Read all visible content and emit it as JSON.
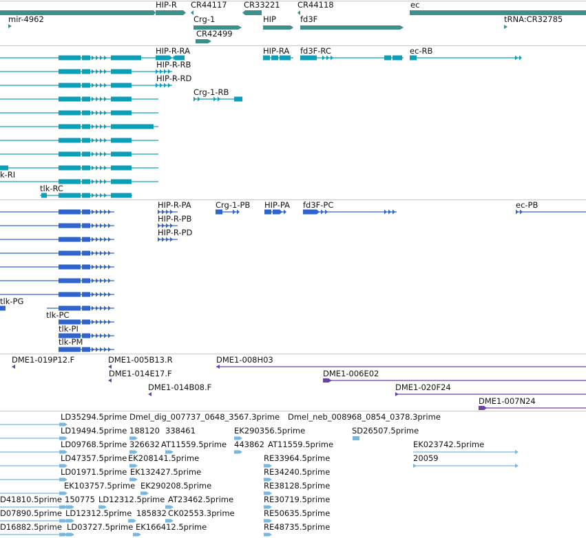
{
  "colors": {
    "gene": "#3d8f8c",
    "mrna": "#0e9fb8",
    "cds": "#2f64cf",
    "bac": "#6a3fa8",
    "est": "#78b8dc"
  },
  "gene_track": {
    "labels": [
      "HIP-R",
      "CR44117",
      "CR33221",
      "CR44118",
      "ec",
      "mir-4962",
      "Crg-1",
      "HIP",
      "fd3F",
      "tRNA:CR32785",
      "CR42499"
    ]
  },
  "mrna_track": {
    "labels": [
      "HIP-R-RA",
      "HIP-RA",
      "fd3F-RC",
      "ec-RB",
      "HIP-R-RB",
      "HIP-R-RD",
      "Crg-1-RB",
      "k-RI",
      "tlk-RC"
    ]
  },
  "cds_track": {
    "labels": [
      "HIP-R-PA",
      "Crg-1-PB",
      "HIP-PA",
      "fd3F-PC",
      "ec-PB",
      "HIP-R-PB",
      "HIP-R-PD",
      "tlk-PG",
      "tlk-PC",
      "tlk-PI",
      "tlk-PM"
    ]
  },
  "bac_track": {
    "labels": [
      "DME1-019P12.F",
      "DME1-005B13.R",
      "DME1-008H03",
      "DME1-014E17.F",
      "DME1-006E02",
      "DME1-014B08.F",
      "DME1-020F24",
      "DME1-007N24"
    ]
  },
  "est_track": {
    "labels": [
      "LD35294.5prime",
      "Dmel_dig_007737_0648_3567.3prime",
      "Dmel_neb_008968_0854_0378.3prime",
      "LD19494.5prime",
      "188120",
      "338461",
      "EK290356.5prime",
      "SD26507.5prime",
      "LD09768.5prime",
      "326632",
      "AT11559.5prime",
      "443862",
      "AT11559.5prime",
      "EK023742.5prime",
      "LD47357.5prime",
      "EK208141.5prime",
      "RE33964.5prime",
      "20059",
      "LD01971.5prime",
      "EK132427.5prime",
      "RE34240.5prime",
      "EK103757.5prime",
      "EK290208.5prime",
      "RE38128.5prime",
      "D41810.5prime",
      "150775",
      "LD12312.5prime",
      "AT23462.5prime",
      "RE30719.5prime",
      "D07890.5prime",
      "LD12312.5prime",
      "185832",
      "CK02553.3prime",
      "RE50635.5prime",
      "D16882.5prime",
      "LD03727.5prime",
      "EK166412.5prime",
      "RE48735.5prime"
    ]
  }
}
